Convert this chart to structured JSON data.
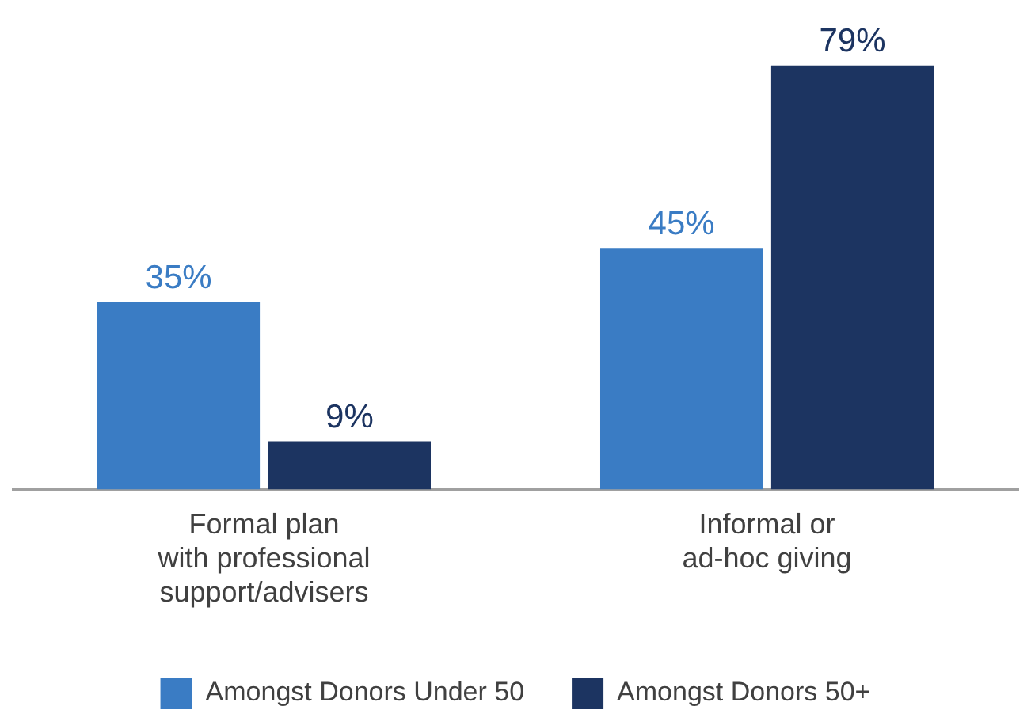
{
  "chart_data": {
    "type": "bar",
    "categories": [
      "Formal plan\nwith professional\nsupport/advisers",
      "Informal or\nad-hoc giving"
    ],
    "series": [
      {
        "name": "Amongst Donors Under 50",
        "color": "#3a7cc4",
        "values": [
          35,
          45
        ],
        "value_labels": [
          "35%",
          "45%"
        ]
      },
      {
        "name": "Amongst Donors 50+",
        "color": "#1c3461",
        "values": [
          9,
          79
        ],
        "value_labels": [
          "9%",
          "79%"
        ]
      }
    ],
    "legend": "bottom",
    "grid": false,
    "tick_labels": "x"
  }
}
